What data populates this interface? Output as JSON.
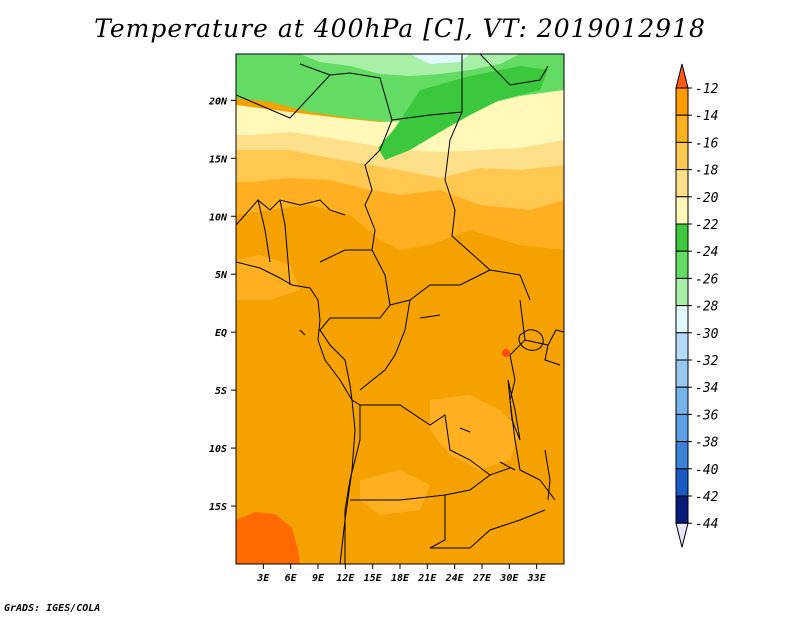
{
  "title": "Temperature at 400hPa [C], VT: 2019012918",
  "credit": "GrADS: IGES/COLA",
  "map": {
    "variable": "Temperature at 400hPa",
    "units": "C",
    "valid_time": "2019012918",
    "lon_range": [
      0,
      36
    ],
    "lat_range": [
      -20,
      24
    ],
    "lon_ticks": [
      "3E",
      "6E",
      "9E",
      "12E",
      "15E",
      "18E",
      "21E",
      "24E",
      "27E",
      "30E",
      "33E"
    ],
    "lat_ticks": [
      "20N",
      "15N",
      "10N",
      "5N",
      "EQ",
      "5S",
      "10S",
      "15S"
    ]
  },
  "colorbar": {
    "labels": [
      "-12",
      "-14",
      "-16",
      "-18",
      "-20",
      "-22",
      "-24",
      "-26",
      "-28",
      "-30",
      "-32",
      "-34",
      "-36",
      "-38",
      "-40",
      "-42",
      "-44"
    ],
    "colors": [
      "#ff6a00",
      "#ff9a00",
      "#ffb020",
      "#ffc850",
      "#ffe08a",
      "#fff8b8",
      "#3cc83c",
      "#64dc64",
      "#a8f0a8",
      "#e2fafe",
      "#b4dcf8",
      "#96c8f0",
      "#78b4ec",
      "#5a9ee4",
      "#3c82d8",
      "#1a5ac4",
      "#0a1a7a"
    ],
    "top_color": "#ff5a10",
    "bottom_color": "#e6e8fa"
  },
  "colors": {
    "orange_dominant": "#f5a200",
    "orange_dark": "#ff6a00",
    "orange_light": "#ffb020",
    "yellow_pale": "#fff8b8",
    "green_dark": "#3cc83c",
    "green_mid": "#64dc64",
    "green_light": "#a8f0a8"
  }
}
